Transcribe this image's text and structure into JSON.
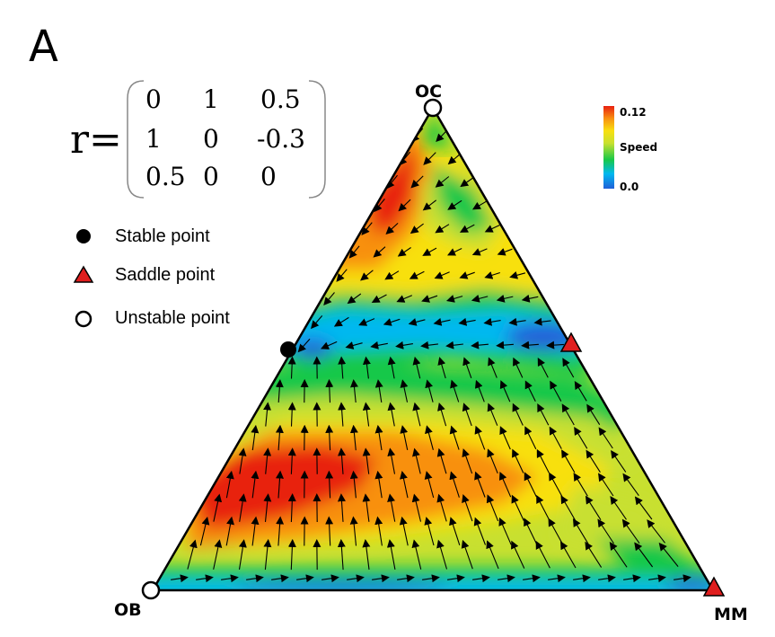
{
  "panel_label": "A",
  "equation": {
    "lhs": "r=",
    "matrix": [
      [
        "0",
        "1",
        "0.5"
      ],
      [
        "1",
        "0",
        "-0.3"
      ],
      [
        "0.5",
        "0",
        "0"
      ]
    ]
  },
  "legend": {
    "items": [
      {
        "label": "Stable point",
        "marker": "filled-circle",
        "color": "#000000"
      },
      {
        "label": "Saddle point",
        "marker": "triangle",
        "color": "#e01e1e"
      },
      {
        "label": "Unstable point",
        "marker": "open-circle",
        "color": "#000000"
      }
    ]
  },
  "vertices": {
    "top": "OC",
    "left": "OB",
    "right": "MM"
  },
  "colorbar": {
    "title": "Speed",
    "max_label": "0.12",
    "min_label": "0.0",
    "colors": [
      "#2060d8",
      "#00b8f0",
      "#18c848",
      "#c8e030",
      "#f8e010",
      "#f89010",
      "#e82010"
    ]
  },
  "fixed_points": [
    {
      "type": "stable",
      "position": "on OB–OC edge"
    },
    {
      "type": "saddle",
      "position": "on OC–MM edge"
    },
    {
      "type": "unstable",
      "position": "OC vertex"
    },
    {
      "type": "unstable",
      "position": "OB vertex"
    },
    {
      "type": "saddle",
      "position": "MM vertex"
    }
  ]
}
